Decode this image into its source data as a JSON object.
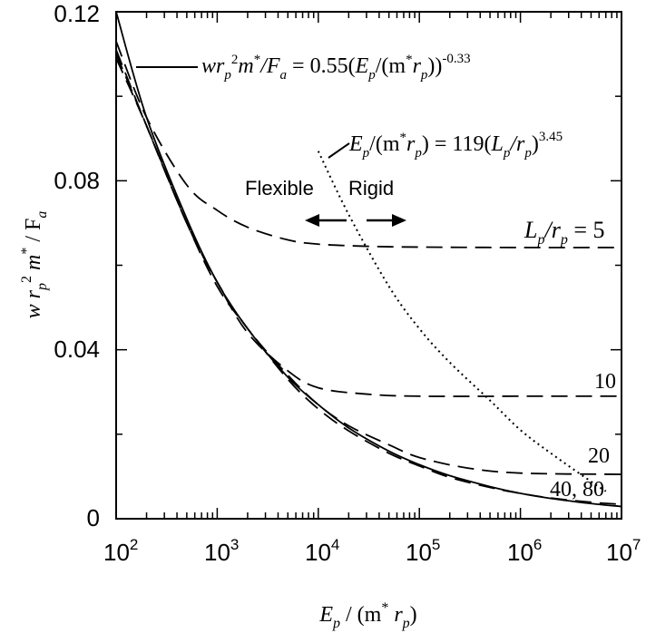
{
  "chart_data": {
    "type": "line",
    "x_scale": "log",
    "xlim": [
      100,
      10000000
    ],
    "ylim": [
      0,
      0.12
    ],
    "x_ticks": [
      {
        "value": 100,
        "base": "10",
        "exp": "2"
      },
      {
        "value": 1000,
        "base": "10",
        "exp": "3"
      },
      {
        "value": 10000,
        "base": "10",
        "exp": "4"
      },
      {
        "value": 100000,
        "base": "10",
        "exp": "5"
      },
      {
        "value": 1000000,
        "base": "10",
        "exp": "6"
      },
      {
        "value": 10000000,
        "base": "10",
        "exp": "7"
      }
    ],
    "y_ticks": [
      {
        "value": 0,
        "label": "0"
      },
      {
        "value": 0.04,
        "label": "0.04"
      },
      {
        "value": 0.08,
        "label": "0.08"
      },
      {
        "value": 0.12,
        "label": "0.12"
      }
    ],
    "xlabel": {
      "E": "E",
      "p": "p",
      "rest": " / (m",
      "star": "*",
      "r": " r",
      "p2": "p",
      "close": ")"
    },
    "ylabel": {
      "w": "w r",
      "p": "p",
      "two": "2",
      "m": " m",
      "star": "*",
      "slash": " / F",
      "a": "a"
    },
    "grid": false,
    "legend": "none",
    "series": [
      {
        "style": "solid",
        "x": [
          100,
          200,
          500,
          1000,
          2000,
          5000,
          10000,
          20000,
          50000,
          100000,
          200000,
          500000,
          1000000,
          2000000,
          5000000,
          10000000
        ],
        "y": [
          0.12,
          0.095,
          0.071,
          0.056,
          0.045,
          0.0335,
          0.027,
          0.0215,
          0.016,
          0.0128,
          0.0102,
          0.0076,
          0.006,
          0.0048,
          0.0036,
          0.0029
        ]
      },
      {
        "label": "5",
        "style": "dashed",
        "x": [
          100,
          200,
          500,
          1000,
          2000,
          5000,
          10000,
          30000,
          100000,
          1000000,
          10000000
        ],
        "y": [
          0.113,
          0.095,
          0.079,
          0.073,
          0.069,
          0.066,
          0.065,
          0.0645,
          0.0643,
          0.0642,
          0.0642
        ]
      },
      {
        "label": "10",
        "style": "dashed",
        "x": [
          100,
          200,
          500,
          1000,
          2000,
          5000,
          10000,
          30000,
          100000,
          1000000,
          10000000
        ],
        "y": [
          0.111,
          0.093,
          0.07,
          0.056,
          0.044,
          0.035,
          0.031,
          0.0295,
          0.029,
          0.029,
          0.029
        ]
      },
      {
        "label": "20",
        "style": "dashed",
        "x": [
          100,
          200,
          500,
          1000,
          2000,
          5000,
          10000,
          20000,
          50000,
          100000,
          300000,
          1000000,
          10000000
        ],
        "y": [
          0.11,
          0.093,
          0.07,
          0.056,
          0.045,
          0.034,
          0.027,
          0.022,
          0.0175,
          0.0145,
          0.012,
          0.0108,
          0.0105
        ]
      },
      {
        "label": "40, 80",
        "style": "dashed",
        "x": [
          100,
          200,
          500,
          1000,
          2000,
          5000,
          10000,
          20000,
          50000,
          100000,
          200000,
          500000,
          1000000,
          2000000,
          5000000,
          10000000
        ],
        "y": [
          0.109,
          0.093,
          0.07,
          0.055,
          0.045,
          0.033,
          0.026,
          0.0208,
          0.0155,
          0.0125,
          0.0098,
          0.0074,
          0.006,
          0.0049,
          0.0039,
          0.0034
        ]
      },
      {
        "style": "dotted",
        "x": [
          10000,
          20000,
          50000,
          100000,
          200000,
          500000,
          1000000,
          2000000,
          5000000,
          7000000
        ],
        "y": [
          0.087,
          0.072,
          0.055,
          0.045,
          0.037,
          0.028,
          0.021,
          0.0155,
          0.0088,
          0.0065
        ]
      }
    ],
    "annotations": {
      "fit_equation": {
        "lhs_w": "wr",
        "p1": "p",
        "two": "2",
        "m": "m",
        "star": "*",
        "fa": "/F",
        "a": "a",
        "eq": " = 0.55(",
        "E": "E",
        "p2": "p",
        "open": "/(m",
        "star2": "*",
        "r": "r",
        "p3": "p",
        "close": "))",
        "exp": "-0.33"
      },
      "boundary_equation": {
        "E": "E",
        "p1": "p",
        "open": "/(m",
        "star": "*",
        "r": "r",
        "p2": "p",
        "mid": ") = 119(",
        "L": "L",
        "p3": "p",
        "div": "/r",
        "p4": "p",
        "close": ")",
        "exp": "3.45"
      },
      "flexible": "Flexible",
      "rigid": "Rigid",
      "lp_rp_label": {
        "L": "L",
        "p1": "p",
        "slash": "/r",
        "p2": "p",
        "eq": " = 5"
      },
      "label_10": "10",
      "label_20": "20",
      "label_40_80": "40, 80"
    }
  }
}
